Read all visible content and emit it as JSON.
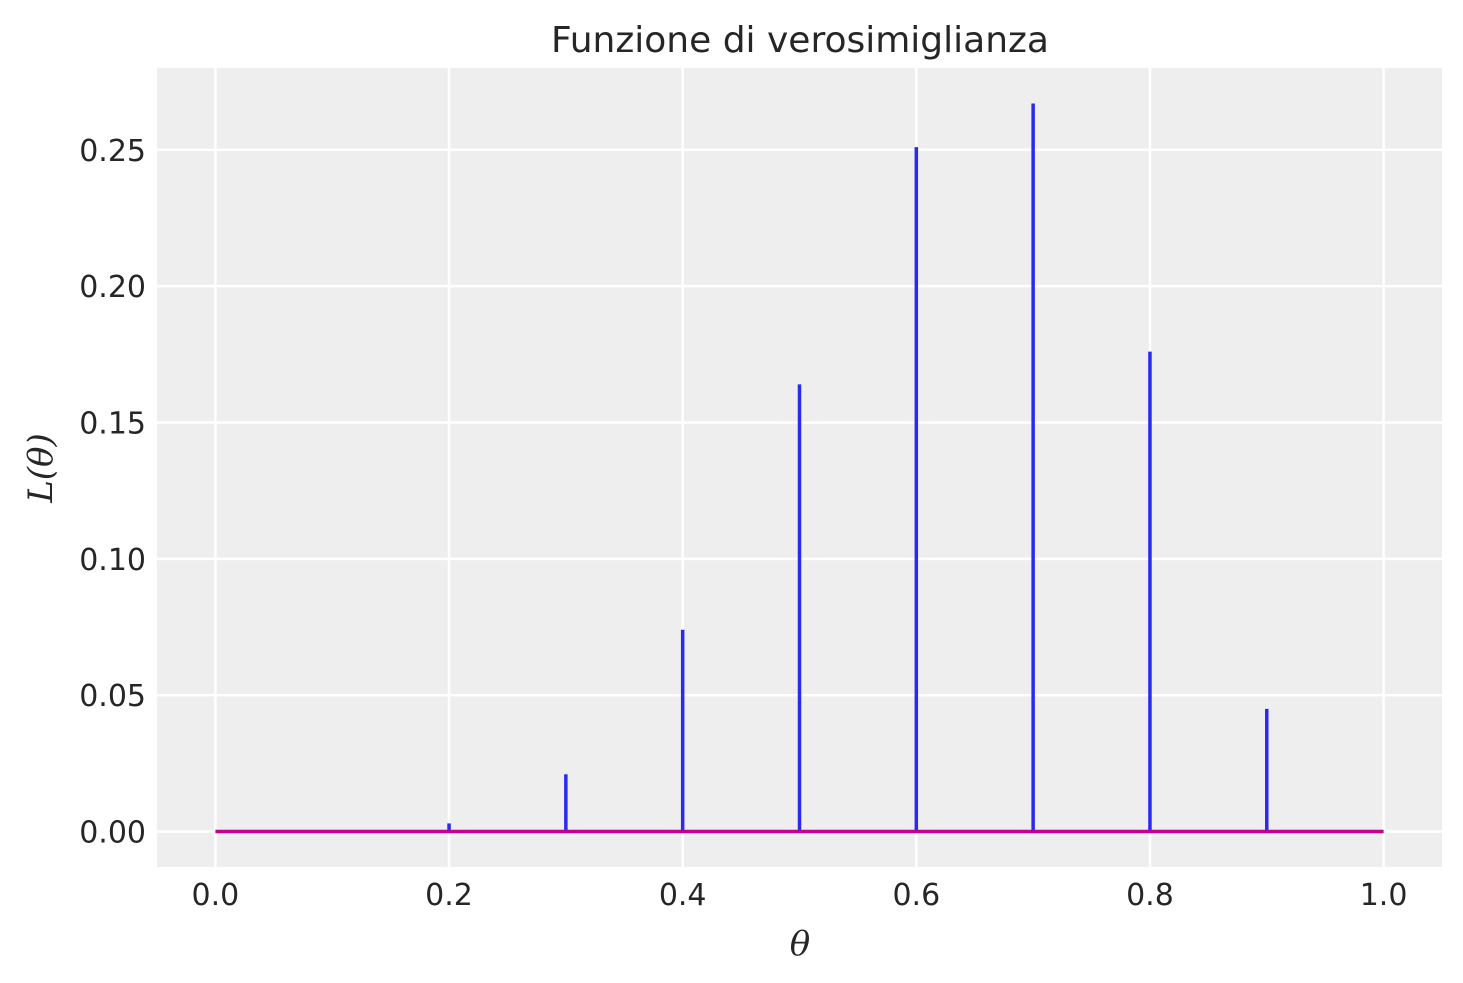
{
  "chart_data": {
    "type": "bar",
    "title": "Funzione di verosimiglianza",
    "xlabel": "θ",
    "ylabel": "L(θ)",
    "xlim": [
      -0.05,
      1.05
    ],
    "ylim": [
      -0.013,
      0.28
    ],
    "x_ticks": [
      0.0,
      0.2,
      0.4,
      0.6,
      0.8,
      1.0
    ],
    "x_tick_labels": [
      "0.0",
      "0.2",
      "0.4",
      "0.6",
      "0.8",
      "1.0"
    ],
    "y_ticks": [
      0.0,
      0.05,
      0.1,
      0.15,
      0.2,
      0.25
    ],
    "y_tick_labels": [
      "0.00",
      "0.05",
      "0.10",
      "0.15",
      "0.20",
      "0.25"
    ],
    "grid": true,
    "series": [
      {
        "type": "stem",
        "color": "#2a2aee",
        "x": [
          0.0,
          0.1,
          0.2,
          0.3,
          0.4,
          0.5,
          0.6,
          0.7,
          0.8,
          0.9,
          1.0
        ],
        "values": [
          0.0,
          0.0,
          0.003,
          0.021,
          0.074,
          0.164,
          0.251,
          0.267,
          0.176,
          0.045,
          0.0
        ]
      },
      {
        "type": "line",
        "color": "#c0008f",
        "x": [
          0.0,
          1.0
        ],
        "values": [
          0.0,
          0.0
        ]
      }
    ],
    "colors": {
      "plot_bg": "#eeeeee",
      "grid": "#ffffff",
      "text": "#262626"
    }
  }
}
